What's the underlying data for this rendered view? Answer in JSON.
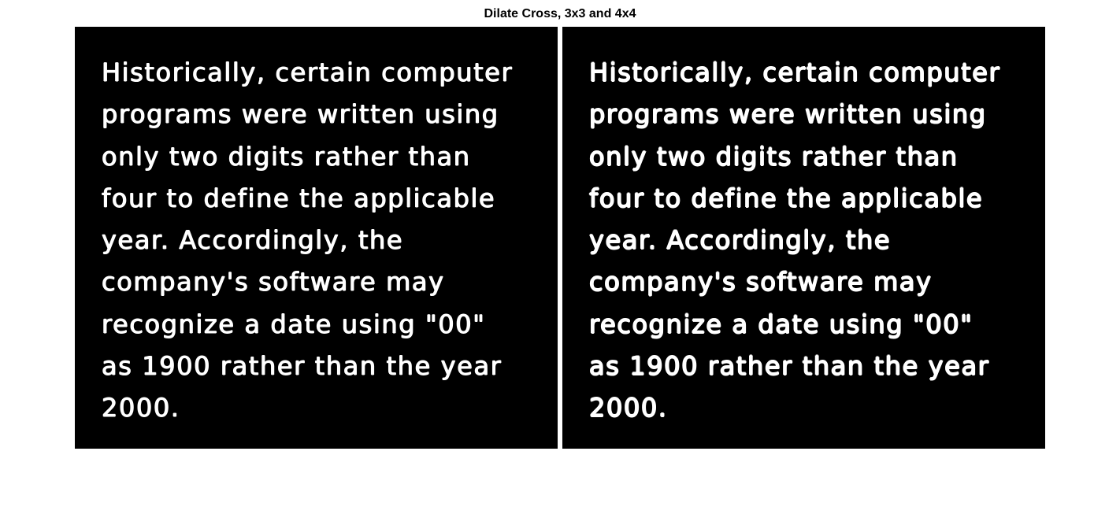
{
  "figure": {
    "title": "Dilate Cross, 3x3 and 4x4"
  },
  "panels": [
    {
      "text": "Historically, certain computer\nprograms were written using\nonly two digits rather than\nfour to define the applicable\nyear. Accordingly, the\ncompany's software may\nrecognize a date using \"00\"\nas 1900 rather than the year\n2000."
    },
    {
      "text": "Historically, certain computer\nprograms were written using\nonly two digits rather than\nfour to define the applicable\nyear. Accordingly, the\ncompany's software may\nrecognize a date using \"00\"\nas 1900 rather than the year\n2000."
    }
  ],
  "colors": {
    "panel_background": "#000000",
    "text": "#ffffff",
    "page_background": "#ffffff"
  }
}
